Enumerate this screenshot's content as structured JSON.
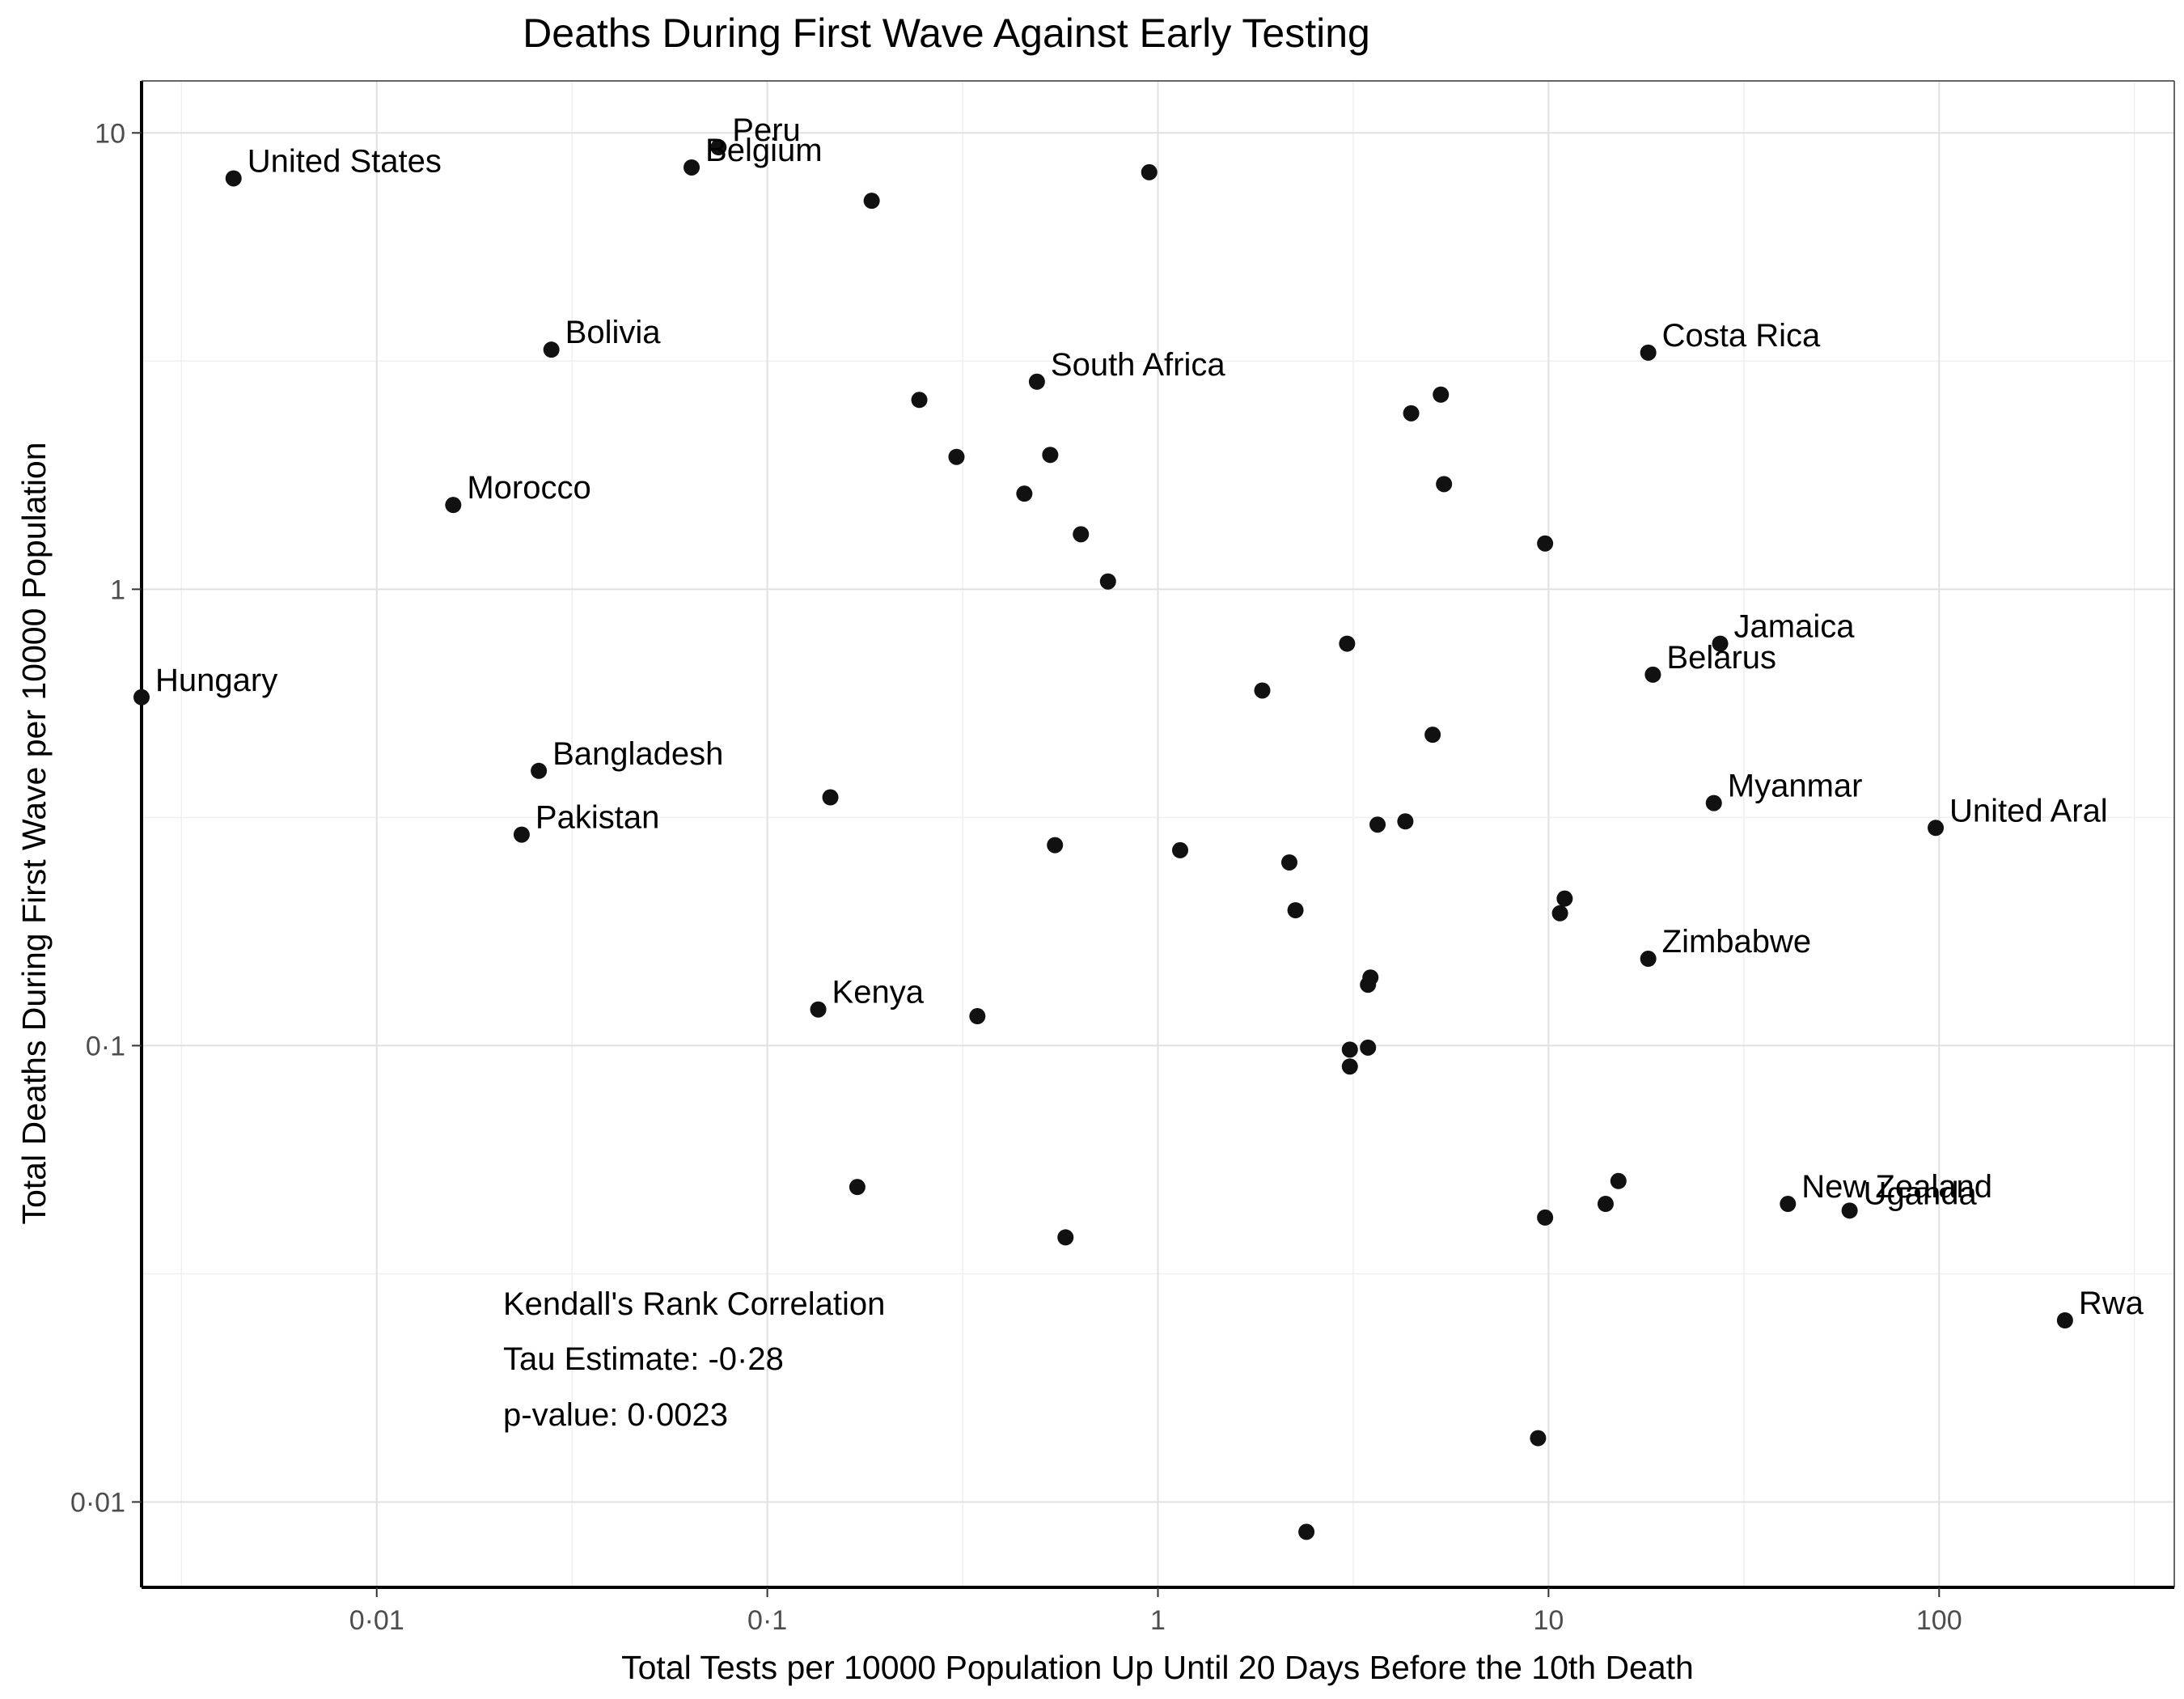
{
  "chart_data": {
    "type": "scatter",
    "title": "Deaths During First Wave Against Early Testing",
    "xlabel": "Total Tests per 10000 Population Up Until 20 Days Before the 10th Death",
    "ylabel": "Total Deaths During First Wave per 10000 Population",
    "x_scale": "log10",
    "y_scale": "log10",
    "xlim": [
      0.0025,
      400
    ],
    "ylim": [
      0.0065,
      13
    ],
    "x_ticks": [
      0.01,
      0.1,
      1,
      10,
      100
    ],
    "x_tick_labels": [
      "0·01",
      "0·1",
      "1",
      "10",
      "100"
    ],
    "y_ticks": [
      0.01,
      0.1,
      1,
      10
    ],
    "y_tick_labels": [
      "0·01",
      "0·1",
      "1",
      "10"
    ],
    "grid": true,
    "annotation": [
      "Kendall's Rank Correlation",
      "Tau Estimate: -0·28",
      "p-value: 0·0023"
    ],
    "points": [
      {
        "x": 0.0043,
        "y": 7.95,
        "label": "United States"
      },
      {
        "x": 0.075,
        "y": 9.3,
        "label": "Peru"
      },
      {
        "x": 0.064,
        "y": 8.4,
        "label": "Belgium"
      },
      {
        "x": 0.028,
        "y": 3.35,
        "label": "Bolivia"
      },
      {
        "x": 0.0157,
        "y": 1.53,
        "label": "Morocco"
      },
      {
        "x": 0.0025,
        "y": 0.58,
        "label": "Hungary"
      },
      {
        "x": 0.026,
        "y": 0.4,
        "label": "Bangladesh"
      },
      {
        "x": 0.0235,
        "y": 0.29,
        "label": "Pakistan"
      },
      {
        "x": 0.135,
        "y": 0.12,
        "label": "Kenya"
      },
      {
        "x": 0.49,
        "y": 2.85,
        "label": "South Africa"
      },
      {
        "x": 18.0,
        "y": 3.3,
        "label": "Costa Rica"
      },
      {
        "x": 27.5,
        "y": 0.76,
        "label": "Jamaica"
      },
      {
        "x": 18.5,
        "y": 0.65,
        "label": "Belarus"
      },
      {
        "x": 26.5,
        "y": 0.34,
        "label": "Myanmar"
      },
      {
        "x": 98,
        "y": 0.3,
        "label": "United Aral"
      },
      {
        "x": 18.0,
        "y": 0.155,
        "label": "Zimbabwe"
      },
      {
        "x": 41,
        "y": 0.045,
        "label": "New Zealand"
      },
      {
        "x": 59,
        "y": 0.0435,
        "label": "Uganda"
      },
      {
        "x": 210,
        "y": 0.025,
        "label": "Rwa"
      },
      {
        "x": 0.185,
        "y": 7.1,
        "label": ""
      },
      {
        "x": 0.95,
        "y": 8.2,
        "label": ""
      },
      {
        "x": 0.245,
        "y": 2.6,
        "label": ""
      },
      {
        "x": 0.305,
        "y": 1.95,
        "label": ""
      },
      {
        "x": 0.53,
        "y": 1.97,
        "label": ""
      },
      {
        "x": 0.455,
        "y": 1.62,
        "label": ""
      },
      {
        "x": 0.635,
        "y": 1.32,
        "label": ""
      },
      {
        "x": 0.745,
        "y": 1.04,
        "label": ""
      },
      {
        "x": 4.45,
        "y": 2.43,
        "label": ""
      },
      {
        "x": 5.3,
        "y": 2.67,
        "label": ""
      },
      {
        "x": 5.4,
        "y": 1.7,
        "label": ""
      },
      {
        "x": 9.8,
        "y": 1.26,
        "label": ""
      },
      {
        "x": 3.05,
        "y": 0.76,
        "label": ""
      },
      {
        "x": 1.85,
        "y": 0.6,
        "label": ""
      },
      {
        "x": 5.05,
        "y": 0.48,
        "label": ""
      },
      {
        "x": 0.145,
        "y": 0.35,
        "label": ""
      },
      {
        "x": 0.545,
        "y": 0.275,
        "label": ""
      },
      {
        "x": 1.14,
        "y": 0.268,
        "label": ""
      },
      {
        "x": 2.17,
        "y": 0.252,
        "label": ""
      },
      {
        "x": 3.65,
        "y": 0.305,
        "label": ""
      },
      {
        "x": 4.3,
        "y": 0.31,
        "label": ""
      },
      {
        "x": 2.25,
        "y": 0.198,
        "label": ""
      },
      {
        "x": 11.0,
        "y": 0.21,
        "label": ""
      },
      {
        "x": 10.7,
        "y": 0.195,
        "label": ""
      },
      {
        "x": 0.345,
        "y": 0.116,
        "label": ""
      },
      {
        "x": 3.5,
        "y": 0.141,
        "label": ""
      },
      {
        "x": 3.45,
        "y": 0.136,
        "label": ""
      },
      {
        "x": 3.1,
        "y": 0.098,
        "label": ""
      },
      {
        "x": 3.45,
        "y": 0.099,
        "label": ""
      },
      {
        "x": 3.1,
        "y": 0.09,
        "label": ""
      },
      {
        "x": 0.17,
        "y": 0.049,
        "label": ""
      },
      {
        "x": 0.58,
        "y": 0.038,
        "label": ""
      },
      {
        "x": 9.8,
        "y": 0.042,
        "label": ""
      },
      {
        "x": 14.0,
        "y": 0.045,
        "label": ""
      },
      {
        "x": 15.1,
        "y": 0.0505,
        "label": ""
      },
      {
        "x": 9.4,
        "y": 0.0138,
        "label": ""
      },
      {
        "x": 2.4,
        "y": 0.0086,
        "label": ""
      }
    ]
  }
}
